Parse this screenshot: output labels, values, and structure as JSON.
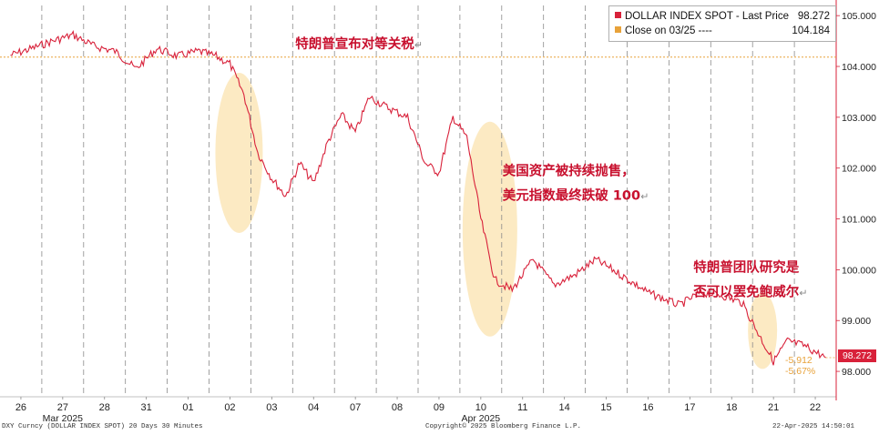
{
  "chart_data": {
    "type": "line",
    "x_labels": [
      "26",
      "27",
      "28",
      "31",
      "01",
      "02",
      "03",
      "04",
      "07",
      "08",
      "09",
      "10",
      "11",
      "14",
      "15",
      "16",
      "17",
      "18",
      "21",
      "22"
    ],
    "months": [
      {
        "label": "Mar 2025",
        "at": "27"
      },
      {
        "label": "Apr 2025",
        "at": "10"
      }
    ],
    "ylim": [
      97.5,
      105.2
    ],
    "y_ticks": [
      "105.000",
      "104.000",
      "103.000",
      "102.000",
      "101.000",
      "100.000",
      "99.000",
      "98.000"
    ],
    "reference_close": 104.184,
    "series": [
      {
        "name": "DOLLAR INDEX SPOT - Last Price",
        "color": "#d8213a",
        "points": [
          [
            "26",
            104.22
          ],
          [
            "26",
            104.35
          ],
          [
            "27",
            104.5
          ],
          [
            "27",
            104.62
          ],
          [
            "28",
            104.4
          ],
          [
            "28",
            104.3
          ],
          [
            "31",
            103.95
          ],
          [
            "31",
            104.35
          ],
          [
            "01",
            104.2
          ],
          [
            "01",
            104.3
          ],
          [
            "02",
            104.2
          ],
          [
            "02",
            104.05
          ],
          [
            "02",
            103.45
          ],
          [
            "03",
            102.3
          ],
          [
            "03",
            101.8
          ],
          [
            "03",
            101.45
          ],
          [
            "04",
            102.1
          ],
          [
            "04",
            101.7
          ],
          [
            "04",
            102.5
          ],
          [
            "07",
            103.05
          ],
          [
            "07",
            102.7
          ],
          [
            "07",
            103.4
          ],
          [
            "08",
            103.2
          ],
          [
            "08",
            103.0
          ],
          [
            "09",
            102.1
          ],
          [
            "09",
            101.9
          ],
          [
            "09",
            103.0
          ],
          [
            "10",
            102.6
          ],
          [
            "10",
            101.0
          ],
          [
            "10",
            99.8
          ],
          [
            "11",
            99.6
          ],
          [
            "11",
            100.2
          ],
          [
            "14",
            99.7
          ],
          [
            "14",
            99.9
          ],
          [
            "15",
            100.2
          ],
          [
            "15",
            99.95
          ],
          [
            "16",
            99.55
          ],
          [
            "17",
            99.3
          ],
          [
            "17",
            99.55
          ],
          [
            "18",
            99.5
          ],
          [
            "18",
            99.35
          ],
          [
            "21",
            98.7
          ],
          [
            "21",
            98.2
          ],
          [
            "21",
            98.6
          ],
          [
            "22",
            98.5
          ],
          [
            "22",
            98.27
          ]
        ]
      },
      {
        "name": "Close on 03/25",
        "color": "#e8a23a"
      }
    ],
    "legend": [
      {
        "label": "DOLLAR INDEX SPOT - Last Price",
        "value": "98.272",
        "color": "#d8213a"
      },
      {
        "label": "Close on 03/25 ----",
        "value": "104.184",
        "color": "#e8a23a"
      }
    ],
    "last_price_label": "98.272",
    "change_abs": "-5.912",
    "change_pct": "-5.67%",
    "highlights": [
      {
        "x": "02",
        "y": 102.3
      },
      {
        "x": "10",
        "y": 100.8
      },
      {
        "x": "21",
        "y": 98.8
      }
    ],
    "annotations": [
      {
        "lines": [
          "特朗普宣布对等关税"
        ],
        "x": "04",
        "y": 104.0
      },
      {
        "lines": [
          "美国资产被持续抛售，",
          "美元指数最终跌破 100"
        ],
        "x": "11",
        "y": 101.5
      },
      {
        "lines": [
          "特朗普团队研究是",
          "否可以罢免鲍威尔"
        ],
        "x": "18",
        "y": 99.6
      }
    ]
  },
  "footer": {
    "left": "DXY Curncy (DOLLAR INDEX SPOT) 20 Days 30 Minutes",
    "center": "Copyright© 2025 Bloomberg Finance L.P.",
    "right": "22-Apr-2025 14:50:01"
  }
}
